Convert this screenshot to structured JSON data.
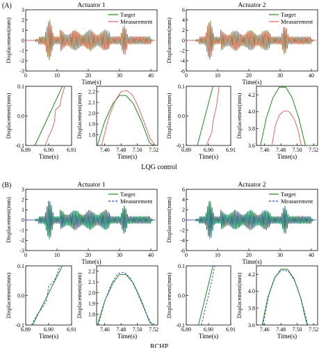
{
  "colors": {
    "target": "#1a8a1a",
    "lqg_measurement": "#e85555",
    "rchp_measurement": "#2244cc"
  },
  "sections": [
    {
      "panel_label": "(A)",
      "caption": "LQG control",
      "measurement_style": "solid",
      "measurement_color": "#e85555",
      "legend": {
        "target": "Target",
        "measurement": "Measurement"
      },
      "charts": [
        {
          "type": "line",
          "title": "Actuator 1",
          "xlabel": "Time(s)",
          "ylabel": "Displacement(mm)",
          "xlim": [
            0,
            42
          ],
          "ylim": [
            -3,
            3
          ],
          "xticks": [
            "0",
            "10",
            "20",
            "30",
            "40"
          ],
          "yticks": [
            "-3",
            "-2",
            "-1",
            "0",
            "1",
            "2",
            "3"
          ],
          "legend_position": "top-right",
          "signal": {
            "amplitude": 2.2,
            "bursts": [
              7.5,
              31.5
            ]
          }
        },
        {
          "type": "line",
          "title": "Actuator 2",
          "xlabel": "Time(s)",
          "ylabel": "Displacement(mm)",
          "xlim": [
            0,
            42
          ],
          "ylim": [
            -6,
            6
          ],
          "xticks": [
            "0",
            "10",
            "20",
            "30",
            "40"
          ],
          "yticks": [
            "-6",
            "-4",
            "-2",
            "0",
            "2",
            "4",
            "6"
          ],
          "legend_position": "top-right",
          "signal": {
            "amplitude": 4.3,
            "bursts": [
              7.5,
              31.5
            ]
          }
        },
        {
          "type": "line",
          "xlabel": "Time(s)",
          "ylabel": "Displacement(mm)",
          "xlim": [
            6.89,
            6.91
          ],
          "ylim": [
            -0.1,
            0.1
          ],
          "xticks": [
            "6.89",
            "6.90",
            "6.91"
          ],
          "yticks": [
            "-0.1",
            "0.0",
            "0.1"
          ],
          "series": [
            {
              "name": "Target",
              "x": [
                6.894,
                6.906
              ],
              "y": [
                -0.1,
                0.1
              ]
            },
            {
              "name": "Measurement",
              "x": [
                6.8985,
                6.9,
                6.9015,
                6.9025,
                6.903,
                6.905,
                6.9055,
                6.907
              ],
              "y": [
                -0.1,
                -0.07,
                -0.045,
                -0.02,
                0.02,
                0.035,
                0.06,
                0.1
              ]
            }
          ]
        },
        {
          "type": "line",
          "xlabel": "Time(s)",
          "ylabel": "Displacement(mm)",
          "xlim": [
            7.45,
            7.525
          ],
          "ylim": [
            1.7,
            2.25
          ],
          "xticks": [
            "7.46",
            "7.48",
            "7.50",
            "7.52"
          ],
          "yticks": [
            "1.8",
            "1.9",
            "2.0",
            "2.1",
            "2.2"
          ],
          "series": [
            {
              "name": "Target",
              "x": [
                7.451,
                7.46,
                7.47,
                7.478,
                7.486,
                7.495,
                7.505,
                7.515,
                7.52
              ],
              "y": [
                1.7,
                1.925,
                2.09,
                2.165,
                2.165,
                2.09,
                1.925,
                1.725,
                1.7
              ]
            },
            {
              "name": "Measurement",
              "x": [
                7.456,
                7.465,
                7.473,
                7.48,
                7.487,
                7.494,
                7.501,
                7.509,
                7.516,
                7.522
              ],
              "y": [
                1.7,
                1.96,
                2.12,
                2.2,
                2.21,
                2.17,
                2.06,
                1.9,
                1.76,
                1.7
              ]
            }
          ]
        },
        {
          "type": "line",
          "xlabel": "Time(s)",
          "ylabel": "Displacement(mm)",
          "xlim": [
            6.89,
            6.91
          ],
          "ylim": [
            -0.1,
            0.1
          ],
          "xticks": [
            "6.89",
            "6.90",
            "6.91"
          ],
          "yticks": [
            "-0.1",
            "0.0",
            "0.1"
          ],
          "series": [
            {
              "name": "Target",
              "x": [
                6.895,
                6.902
              ],
              "y": [
                -0.1,
                0.1
              ]
            },
            {
              "name": "Measurement",
              "x": [
                6.899,
                6.9015,
                6.902,
                6.9035,
                6.9048
              ],
              "y": [
                -0.1,
                -0.055,
                -0.02,
                0.03,
                0.1
              ]
            }
          ]
        },
        {
          "type": "line",
          "xlabel": "Time(s)",
          "ylabel": "Displacement(mm)",
          "xlim": [
            7.45,
            7.525
          ],
          "ylim": [
            3.6,
            4.3
          ],
          "xticks": [
            "7.46",
            "7.48",
            "7.50",
            "7.52"
          ],
          "yticks": [
            "3.6",
            "3.8",
            "4.0",
            "4.2"
          ],
          "series": [
            {
              "name": "Target",
              "x": [
                7.455,
                7.462,
                7.47,
                7.478,
                7.486,
                7.494,
                7.502,
                7.51,
                7.518
              ],
              "y": [
                3.6,
                3.92,
                4.16,
                4.29,
                4.29,
                4.16,
                3.92,
                3.6,
                3.6
              ]
            },
            {
              "name": "Measurement",
              "x": [
                7.469,
                7.473,
                7.478,
                7.484,
                7.49,
                7.496,
                7.501,
                7.505
              ],
              "y": [
                3.6,
                3.83,
                3.96,
                4.01,
                4.0,
                3.92,
                3.78,
                3.6
              ]
            }
          ]
        }
      ]
    },
    {
      "panel_label": "(B)",
      "caption": "RCHP",
      "measurement_style": "dashed",
      "measurement_color": "#2244cc",
      "legend": {
        "target": "Target",
        "measurement": "Measurement"
      },
      "charts": [
        {
          "type": "line",
          "title": "Actuator 1",
          "xlabel": "Time(s)",
          "ylabel": "Displacement(mm)",
          "xlim": [
            0,
            42
          ],
          "ylim": [
            -3,
            3
          ],
          "xticks": [
            "0",
            "10",
            "20",
            "30",
            "40"
          ],
          "yticks": [
            "-3",
            "-2",
            "-1",
            "0",
            "1",
            "2",
            "3"
          ],
          "legend_position": "top-right",
          "signal": {
            "amplitude": 2.1,
            "bursts": [
              7.5,
              31.5
            ]
          }
        },
        {
          "type": "line",
          "title": "Actuator 2",
          "xlabel": "Time(s)",
          "ylabel": "Displacement(mm)",
          "xlim": [
            0,
            42
          ],
          "ylim": [
            -6,
            6
          ],
          "xticks": [
            "0",
            "10",
            "20",
            "30",
            "40"
          ],
          "yticks": [
            "-6",
            "-4",
            "-2",
            "0",
            "2",
            "4",
            "6"
          ],
          "legend_position": "top-right",
          "signal": {
            "amplitude": 4.2,
            "bursts": [
              7.5,
              31.5
            ]
          }
        },
        {
          "type": "line",
          "xlabel": "Time(s)",
          "ylabel": "Displacement(mm)",
          "xlim": [
            6.89,
            6.91
          ],
          "ylim": [
            -0.1,
            0.1
          ],
          "xticks": [
            "6.89",
            "6.90",
            "6.91"
          ],
          "yticks": [
            "-0.1",
            "0.0",
            "0.1"
          ],
          "series": [
            {
              "name": "Target",
              "x": [
                6.893,
                6.906
              ],
              "y": [
                -0.1,
                0.1
              ]
            },
            {
              "name": "Measurement",
              "x": [
                6.8925,
                6.895,
                6.896,
                6.899,
                6.9,
                6.9025,
                6.9035,
                6.905
              ],
              "y": [
                -0.1,
                -0.065,
                -0.055,
                -0.02,
                0.03,
                0.05,
                0.07,
                0.1
              ]
            }
          ]
        },
        {
          "type": "line",
          "xlabel": "Time(s)",
          "ylabel": "Displacement(mm)",
          "xlim": [
            7.45,
            7.525
          ],
          "ylim": [
            1.7,
            2.25
          ],
          "xticks": [
            "7.46",
            "7.48",
            "7.50",
            "7.52"
          ],
          "yticks": [
            "1.8",
            "1.9",
            "2.0",
            "2.1",
            "2.2"
          ],
          "series": [
            {
              "name": "Target",
              "x": [
                7.451,
                7.46,
                7.47,
                7.478,
                7.486,
                7.495,
                7.505,
                7.515,
                7.52
              ],
              "y": [
                1.7,
                1.925,
                2.09,
                2.17,
                2.17,
                2.09,
                1.925,
                1.725,
                1.7
              ]
            },
            {
              "name": "Measurement",
              "x": [
                7.452,
                7.46,
                7.468,
                7.476,
                7.484,
                7.492,
                7.5,
                7.51,
                7.518
              ],
              "y": [
                1.7,
                1.92,
                2.08,
                2.18,
                2.19,
                2.13,
                2.0,
                1.82,
                1.7
              ]
            }
          ]
        },
        {
          "type": "line",
          "xlabel": "Time(s)",
          "ylabel": "Displacement(mm)",
          "xlim": [
            6.89,
            6.91
          ],
          "ylim": [
            -0.1,
            0.1
          ],
          "xticks": [
            "6.89",
            "6.90",
            "6.91"
          ],
          "yticks": [
            "-0.1",
            "0.0",
            "0.1"
          ],
          "series": [
            {
              "name": "Target",
              "x": [
                6.8955,
                6.902
              ],
              "y": [
                -0.1,
                0.1
              ]
            },
            {
              "name": "Measurement",
              "x": [
                6.8968,
                6.8985,
                6.9,
                6.9015,
                6.9028
              ],
              "y": [
                -0.1,
                -0.045,
                0.0,
                0.05,
                0.1
              ]
            }
          ]
        },
        {
          "type": "line",
          "xlabel": "Time(s)",
          "ylabel": "Displacement(mm)",
          "xlim": [
            7.45,
            7.525
          ],
          "ylim": [
            3.6,
            4.3
          ],
          "xticks": [
            "7.46",
            "7.48",
            "7.50",
            "7.52"
          ],
          "yticks": [
            "3.6",
            "3.8",
            "4.0",
            "4.2"
          ],
          "series": [
            {
              "name": "Target",
              "x": [
                7.457,
                7.464,
                7.472,
                7.48,
                7.488,
                7.496,
                7.504,
                7.512,
                7.518
              ],
              "y": [
                3.6,
                3.93,
                4.15,
                4.26,
                4.26,
                4.15,
                3.93,
                3.6,
                3.6
              ]
            },
            {
              "name": "Measurement",
              "x": [
                7.458,
                7.465,
                7.473,
                7.481,
                7.489,
                7.497,
                7.505,
                7.513
              ],
              "y": [
                3.6,
                3.95,
                4.17,
                4.25,
                4.24,
                4.12,
                3.9,
                3.6
              ]
            }
          ]
        }
      ]
    }
  ]
}
